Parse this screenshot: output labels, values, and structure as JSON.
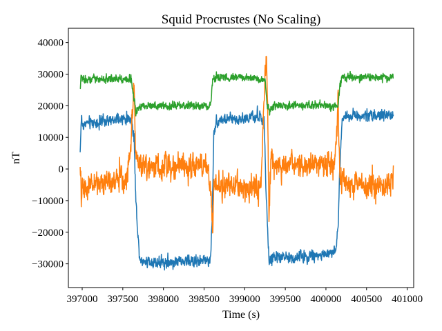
{
  "chart_data": {
    "type": "line",
    "title": "Squid Procrustes (No Scaling)",
    "xlabel": "Time (s)",
    "ylabel": "nT",
    "xlim": [
      396830,
      401080
    ],
    "ylim": [
      -37500,
      44500
    ],
    "xticks": [
      397000,
      397500,
      398000,
      398500,
      399000,
      399500,
      400000,
      400500,
      401000
    ],
    "xtick_labels": [
      "397000",
      "397500",
      "398000",
      "398500",
      "399000",
      "399500",
      "400000",
      "400500",
      "401000"
    ],
    "yticks": [
      -30000,
      -20000,
      -10000,
      0,
      10000,
      20000,
      30000,
      40000
    ],
    "ytick_labels": [
      "−30000",
      "−20000",
      "−10000",
      "0",
      "10000",
      "20000",
      "30000",
      "40000"
    ],
    "grid": false,
    "legend": null,
    "series": [
      {
        "color": "#1f77b4",
        "noise": 1300,
        "x": [
          396975,
          396990,
          397000,
          397050,
          397300,
          397600,
          397640,
          397660,
          397700,
          397720,
          398000,
          398500,
          398580,
          398600,
          398620,
          398650,
          398700,
          399000,
          399200,
          399240,
          399260,
          399290,
          399300,
          399320,
          399600,
          400000,
          400120,
          400150,
          400170,
          400200,
          400300,
          400600,
          400830
        ],
        "y": [
          5000,
          17000,
          14000,
          14500,
          15000,
          16000,
          10000,
          -10000,
          -26000,
          -29000,
          -29500,
          -29000,
          -29000,
          -15000,
          12000,
          15000,
          15500,
          16000,
          16500,
          15000,
          -5000,
          -25000,
          -30000,
          -28000,
          -28000,
          -27000,
          -26000,
          -18000,
          0,
          16000,
          17000,
          17000,
          17000
        ]
      },
      {
        "color": "#ff7f0e",
        "noise": 2800,
        "x": [
          396975,
          396990,
          397000,
          397100,
          397300,
          397550,
          397600,
          397640,
          397660,
          397700,
          398000,
          398300,
          398550,
          398590,
          398610,
          398620,
          398700,
          399000,
          399200,
          399250,
          399270,
          399290,
          399300,
          399320,
          399600,
          400000,
          400100,
          400130,
          400150,
          400170,
          400300,
          400600,
          400830
        ],
        "y": [
          -2000,
          -8000,
          -6000,
          -5000,
          -4000,
          -3000,
          8000,
          28000,
          3000,
          1000,
          1000,
          1000,
          1000,
          -10000,
          -20000,
          -5000,
          -5000,
          -6000,
          -6000,
          30000,
          38000,
          5000,
          -15000,
          1000,
          1000,
          1000,
          1000,
          10000,
          22000,
          -3000,
          -5000,
          -5000,
          -5000
        ]
      },
      {
        "color": "#2ca02c",
        "noise": 900,
        "x": [
          396975,
          396985,
          397000,
          397300,
          397600,
          397640,
          397660,
          397700,
          398000,
          398500,
          398580,
          398600,
          398620,
          399000,
          399250,
          399280,
          399310,
          399350,
          399600,
          400000,
          400150,
          400170,
          400200,
          400830
        ],
        "y": [
          25000,
          29000,
          28500,
          28500,
          28500,
          22000,
          18000,
          20000,
          20000,
          20000,
          20000,
          27000,
          29000,
          29000,
          28000,
          20000,
          18000,
          20000,
          20000,
          20000,
          20000,
          26000,
          29000,
          29000
        ]
      }
    ]
  }
}
